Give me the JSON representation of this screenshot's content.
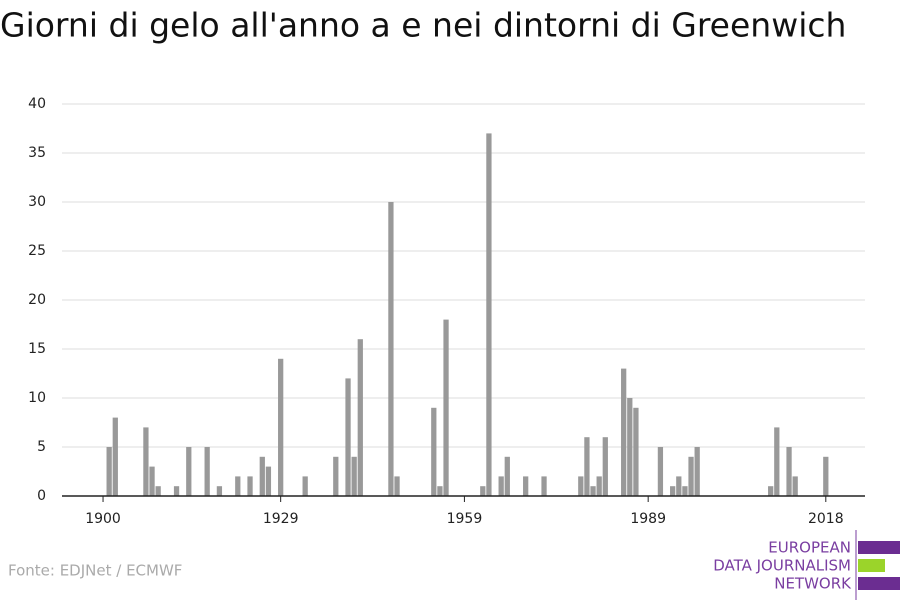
{
  "chart_data": {
    "type": "bar",
    "title": "Giorni di gelo all'anno a e nei dintorni di Greenwich",
    "source": "Fonte: EDJNet / ECMWF",
    "logo": [
      "EUROPEAN",
      "DATA JOURNALISM",
      "NETWORK"
    ],
    "color": "#999999",
    "x": [
      1901,
      1902,
      1907,
      1908,
      1909,
      1912,
      1914,
      1917,
      1919,
      1922,
      1924,
      1926,
      1927,
      1929,
      1933,
      1938,
      1940,
      1941,
      1942,
      1947,
      1948,
      1954,
      1955,
      1956,
      1962,
      1963,
      1965,
      1966,
      1969,
      1972,
      1978,
      1979,
      1980,
      1981,
      1982,
      1985,
      1986,
      1987,
      1991,
      1993,
      1994,
      1995,
      1996,
      1997,
      2009,
      2010,
      2012,
      2013,
      2018
    ],
    "values": [
      5,
      8,
      7,
      3,
      1,
      1,
      5,
      5,
      1,
      2,
      2,
      4,
      3,
      14,
      2,
      4,
      12,
      4,
      16,
      30,
      2,
      9,
      1,
      18,
      1,
      37,
      2,
      4,
      2,
      2,
      2,
      6,
      1,
      2,
      6,
      13,
      10,
      9,
      5,
      1,
      2,
      1,
      4,
      5,
      1,
      7,
      5,
      2,
      4
    ],
    "xlim": [
      1893.3,
      2024.4
    ],
    "xticks": [
      1900,
      1929,
      1959,
      1989,
      2018
    ],
    "ylim": [
      0,
      40
    ],
    "yticks": [
      0,
      5,
      10,
      15,
      20,
      25,
      30,
      35,
      40
    ],
    "grid": true
  }
}
